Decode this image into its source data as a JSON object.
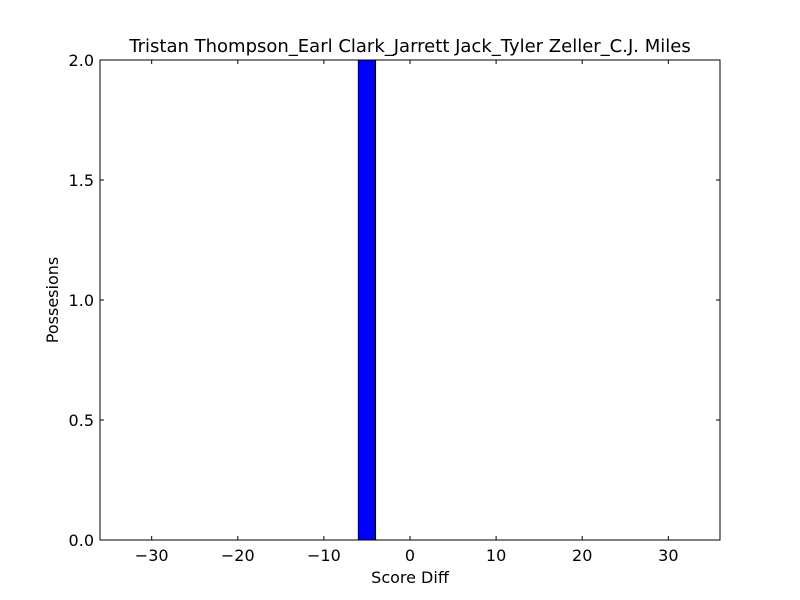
{
  "chart_data": {
    "type": "bar",
    "title": "Tristan Thompson_Earl Clark_Jarrett Jack_Tyler Zeller_C.J. Miles",
    "xlabel": "Score Diff",
    "ylabel": "Possesions",
    "xlim": [
      -36,
      36
    ],
    "ylim": [
      0,
      2
    ],
    "x_ticks": [
      -30,
      -20,
      -10,
      0,
      10,
      20,
      30
    ],
    "x_tick_labels": [
      "−30",
      "−20",
      "−10",
      "0",
      "10",
      "20",
      "30"
    ],
    "y_ticks": [
      0,
      0.5,
      1,
      1.5,
      2
    ],
    "y_tick_labels": [
      "0.0",
      "0.5",
      "1.0",
      "1.5",
      "2.0"
    ],
    "bars": [
      {
        "x_start": -6,
        "x_end": -4,
        "value": 2
      }
    ],
    "grid": false,
    "colors": {
      "bar_fill": "#0000ff",
      "bar_edge": "#000000",
      "axes": "#000000"
    }
  }
}
